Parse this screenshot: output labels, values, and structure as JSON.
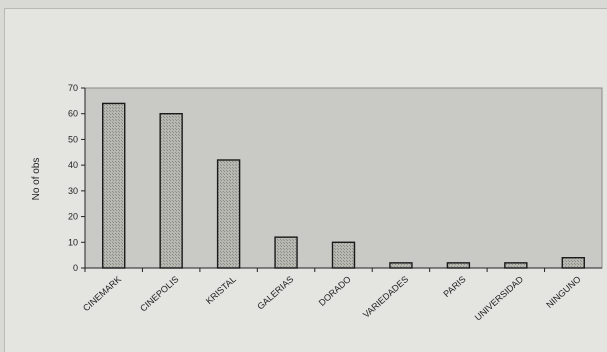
{
  "chart_data": {
    "type": "bar",
    "title": "",
    "xlabel": "",
    "ylabel": "No of obs",
    "ylim": [
      0,
      70
    ],
    "yticks": [
      0,
      10,
      20,
      30,
      40,
      50,
      60,
      70
    ],
    "grid": false,
    "categories": [
      "CINEMARK",
      "CINEPOLIS",
      "KRISTAL",
      "GALERIAS",
      "DORADO",
      "VARIEDADES",
      "PARIS",
      "UNIVERSIDAD",
      "NINGUNO"
    ],
    "values": [
      64,
      60,
      42,
      12,
      10,
      2,
      2,
      2,
      4
    ]
  },
  "colors": {
    "page_background": "#d9d9d6",
    "chart_background": "#e4e4e1",
    "plot_area": "#c8c8c4",
    "bar_fill": "#b3b3ae",
    "bar_stroke": "#222222"
  }
}
